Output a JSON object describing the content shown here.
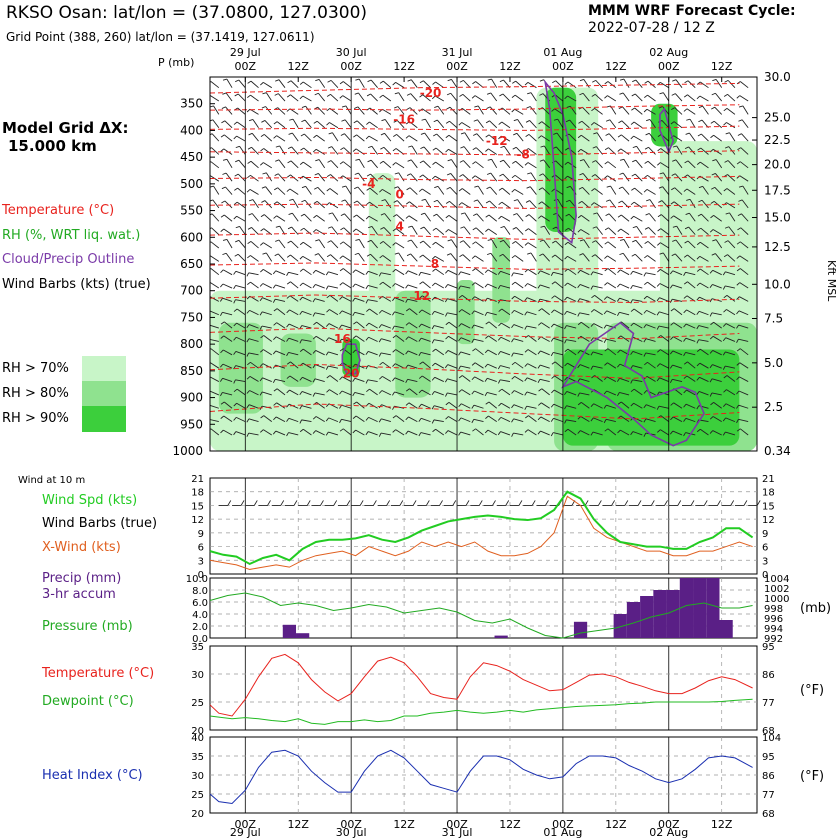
{
  "header": {
    "title": "RKSO Osan:  lat/lon = (37.0800, 127.0300)",
    "subtitle": "Grid Point (388, 260) lat/lon = (37.1419, 127.0611)",
    "forecast_line1": "MMM WRF Forecast Cycle:",
    "forecast_line2": "2022-07-28 / 12  Z",
    "model_grid_line1": "Model Grid ΔX:",
    "model_grid_line2": "15.000 km"
  },
  "colors": {
    "temperature": "#e8231e",
    "rh": "#2fc72f",
    "cloud": "#7a3aa8",
    "wind_speed": "#22cc22",
    "x_wind": "#e06020",
    "precip": "#5a1f86",
    "pressure": "#22aa22",
    "dewpoint": "#22bb22",
    "heat_index": "#1a2fb0",
    "rh70": "#c8f5c8",
    "rh80": "#8fe28f",
    "rh90": "#3ccf3c"
  },
  "legend": {
    "temperature": "Temperature (°C)",
    "rh": "RH (%, WRT liq. wat.)",
    "cloud": "Cloud/Precip Outline",
    "wind_barbs": "Wind Barbs (kts) (true)",
    "rh70": "RH > 70%",
    "rh80": "RH > 80%",
    "rh90": "RH > 90%"
  },
  "time_axis": {
    "dates": [
      {
        "label": "29 Jul",
        "hour": 0
      },
      {
        "label": "30 Jul",
        "hour": 24
      },
      {
        "label": "31 Jul",
        "hour": 48
      },
      {
        "label": "01 Aug",
        "hour": 72
      },
      {
        "label": "02 Aug",
        "hour": 96
      }
    ],
    "ticks": [
      {
        "label": "00Z",
        "hour": 0
      },
      {
        "label": "12Z",
        "hour": 12
      },
      {
        "label": "00Z",
        "hour": 24
      },
      {
        "label": "12Z",
        "hour": 36
      },
      {
        "label": "00Z",
        "hour": 48
      },
      {
        "label": "12Z",
        "hour": 60
      },
      {
        "label": "00Z",
        "hour": 72
      },
      {
        "label": "12Z",
        "hour": 84
      },
      {
        "label": "00Z",
        "hour": 96
      },
      {
        "label": "12Z",
        "hour": 108
      }
    ]
  },
  "chart_data": [
    {
      "type": "heatmap",
      "name": "cross-section",
      "ylabel_left": "P (mb)",
      "ylabel_right": "Kft MSL",
      "pressure_ticks": [
        350,
        400,
        450,
        500,
        550,
        600,
        650,
        700,
        750,
        800,
        850,
        900,
        950,
        1000
      ],
      "height_ticks": [
        {
          "label": "30.0",
          "p": 300
        },
        {
          "label": "25.0",
          "p": 376
        },
        {
          "label": "22.5",
          "p": 418
        },
        {
          "label": "20.0",
          "p": 464
        },
        {
          "label": "17.5",
          "p": 512
        },
        {
          "label": "15.0",
          "p": 563
        },
        {
          "label": "12.5",
          "p": 618
        },
        {
          "label": "10.0",
          "p": 688
        },
        {
          "label": "7.5",
          "p": 752
        },
        {
          "label": "5.0",
          "p": 835
        },
        {
          "label": "2.5",
          "p": 918
        },
        {
          "label": "0.34",
          "p": 1000
        }
      ],
      "temperature_labels": [
        {
          "value": "-20",
          "hour": 42,
          "p": 330
        },
        {
          "value": "-16",
          "hour": 36,
          "p": 380
        },
        {
          "value": "-12",
          "hour": 57,
          "p": 420
        },
        {
          "value": "-8",
          "hour": 63,
          "p": 445
        },
        {
          "value": "-4",
          "hour": 28,
          "p": 500
        },
        {
          "value": "0",
          "hour": 35,
          "p": 520
        },
        {
          "value": "4",
          "hour": 35,
          "p": 580
        },
        {
          "value": "8",
          "hour": 43,
          "p": 650
        },
        {
          "value": "12",
          "hour": 40,
          "p": 710
        },
        {
          "value": "16",
          "hour": 22,
          "p": 790
        },
        {
          "value": "20",
          "hour": 24,
          "p": 855
        }
      ],
      "temperature_isotherms": [
        {
          "p": [
            330,
            325,
            320,
            318,
            315,
            312
          ]
        },
        {
          "p": [
            362,
            360,
            362,
            360,
            355,
            352
          ]
        },
        {
          "p": [
            398,
            396,
            398,
            400,
            396,
            392
          ]
        },
        {
          "p": [
            440,
            442,
            444,
            446,
            442,
            438
          ]
        },
        {
          "p": [
            490,
            488,
            492,
            494,
            490,
            486
          ]
        },
        {
          "p": [
            540,
            538,
            542,
            546,
            542,
            538
          ]
        },
        {
          "p": [
            596,
            592,
            598,
            604,
            600,
            596
          ]
        },
        {
          "p": [
            652,
            648,
            654,
            660,
            658,
            654
          ]
        },
        {
          "p": [
            714,
            708,
            714,
            720,
            722,
            716
          ]
        },
        {
          "p": [
            778,
            770,
            778,
            786,
            790,
            780
          ]
        },
        {
          "p": [
            848,
            838,
            846,
            856,
            864,
            852
          ]
        },
        {
          "p": [
            926,
            912,
            920,
            930,
            940,
            928
          ]
        }
      ],
      "isotherm_hours": [
        -8,
        16,
        40,
        64,
        88,
        112
      ],
      "rh_regions": [
        {
          "level": 70,
          "h0": -8,
          "h1": 116,
          "p0": 700,
          "p1": 1000
        },
        {
          "level": 70,
          "h0": 28,
          "h1": 34,
          "p0": 480,
          "p1": 1000
        },
        {
          "level": 70,
          "h0": 66,
          "h1": 80,
          "p0": 320,
          "p1": 1000
        },
        {
          "level": 70,
          "h0": 94,
          "h1": 116,
          "p0": 420,
          "p1": 1000
        },
        {
          "level": 80,
          "h0": -6,
          "h1": 4,
          "p0": 760,
          "p1": 930
        },
        {
          "level": 80,
          "h0": 8,
          "h1": 16,
          "p0": 780,
          "p1": 880
        },
        {
          "level": 80,
          "h0": 34,
          "h1": 42,
          "p0": 700,
          "p1": 900
        },
        {
          "level": 80,
          "h0": 48,
          "h1": 52,
          "p0": 680,
          "p1": 800
        },
        {
          "level": 80,
          "h0": 56,
          "h1": 60,
          "p0": 600,
          "p1": 760
        },
        {
          "level": 80,
          "h0": 70,
          "h1": 80,
          "p0": 760,
          "p1": 1000
        },
        {
          "level": 80,
          "h0": 82,
          "h1": 116,
          "p0": 760,
          "p1": 1000
        },
        {
          "level": 90,
          "h0": 68,
          "h1": 75,
          "p0": 320,
          "p1": 590
        },
        {
          "level": 90,
          "h0": 22,
          "h1": 26,
          "p0": 790,
          "p1": 860
        },
        {
          "level": 90,
          "h0": 72,
          "h1": 112,
          "p0": 810,
          "p1": 990
        },
        {
          "level": 90,
          "h0": 92,
          "h1": 98,
          "p0": 350,
          "p1": 430
        }
      ],
      "cloud_outlines": [
        {
          "hour": [
            68,
            69,
            70,
            71,
            74,
            75,
            74,
            72,
            70,
            68
          ],
          "p": [
            310,
            360,
            470,
            590,
            610,
            560,
            450,
            370,
            330,
            310
          ]
        },
        {
          "hour": [
            94,
            95,
            96,
            97,
            96,
            94
          ],
          "p": [
            370,
            360,
            390,
            420,
            440,
            400
          ]
        },
        {
          "hour": [
            22,
            23,
            25,
            26,
            25,
            23,
            22
          ],
          "p": [
            820,
            800,
            800,
            830,
            855,
            855,
            835
          ]
        },
        {
          "hour": [
            72,
            78,
            85,
            88,
            86,
            90,
            92,
            99,
            102,
            104,
            100,
            97,
            92,
            88,
            82,
            75,
            72
          ],
          "p": [
            880,
            800,
            760,
            780,
            840,
            860,
            900,
            880,
            890,
            930,
            980,
            990,
            970,
            940,
            900,
            870,
            880
          ]
        }
      ],
      "hour_range": [
        -8,
        116
      ],
      "p_range": [
        300,
        1000
      ]
    },
    {
      "type": "line",
      "name": "wind",
      "title": "Wind at 10 m",
      "labels": [
        "Wind Spd (kts)",
        "Wind Barbs (true)",
        "X-Wind (kts)"
      ],
      "ylim": [
        0,
        21
      ],
      "y_ticks": [
        0,
        3,
        6,
        9,
        12,
        15,
        18,
        21
      ],
      "x": [
        -8,
        -5,
        -2,
        1,
        4,
        7,
        10,
        13,
        16,
        19,
        22,
        25,
        28,
        31,
        34,
        37,
        40,
        43,
        46,
        49,
        52,
        55,
        58,
        61,
        64,
        67,
        70,
        73,
        76,
        79,
        82,
        85,
        88,
        91,
        94,
        97,
        100,
        103,
        106,
        109,
        112,
        115
      ],
      "series": [
        {
          "name": "Wind Spd (kts)",
          "values": [
            5,
            4.2,
            3.8,
            2.2,
            3.5,
            4.2,
            3,
            5.5,
            7,
            7.5,
            7.5,
            7.8,
            8.5,
            7.5,
            7,
            8,
            9.5,
            10.5,
            11.5,
            12,
            12.5,
            12.8,
            12.5,
            12,
            11.8,
            12.2,
            14,
            18,
            16.5,
            12,
            9,
            7,
            6.5,
            6,
            6,
            5.5,
            5.5,
            7,
            8,
            10,
            10,
            8
          ]
        },
        {
          "name": "X-Wind (kts)",
          "values": [
            3,
            2.5,
            2,
            1,
            1.5,
            2,
            1.5,
            3,
            4,
            4.5,
            5,
            4,
            6,
            5,
            4,
            5,
            7,
            6,
            7,
            6,
            7,
            5,
            4,
            4,
            4.5,
            6,
            9,
            17,
            15,
            10,
            8,
            7,
            6,
            5,
            5,
            4,
            4,
            5,
            5,
            6,
            7,
            6
          ]
        }
      ]
    },
    {
      "type": "bar",
      "name": "precip-pressure",
      "labels": [
        "Precip (mm)",
        "3-hr accum",
        "Pressure (mb)"
      ],
      "ylim": [
        0,
        10
      ],
      "y_ticks_left": [
        "0.0",
        "2.0",
        "4.0",
        "6.0",
        "8.0",
        "10.0"
      ],
      "y_ticks_right": [
        "992",
        "994",
        "996",
        "998",
        "1000",
        "1002",
        "1004"
      ],
      "ylabel_right": "(mb)",
      "bars": [
        {
          "hour": 10,
          "value": 2.2
        },
        {
          "hour": 13,
          "value": 0.8
        },
        {
          "hour": 58,
          "value": 0.4
        },
        {
          "hour": 76,
          "value": 2.7
        },
        {
          "hour": 85,
          "value": 4
        },
        {
          "hour": 88,
          "value": 6
        },
        {
          "hour": 91,
          "value": 7
        },
        {
          "hour": 94,
          "value": 8
        },
        {
          "hour": 97,
          "value": 8
        },
        {
          "hour": 100,
          "value": 10
        },
        {
          "hour": 103,
          "value": 10
        },
        {
          "hour": 106,
          "value": 10
        },
        {
          "hour": 109,
          "value": 3
        }
      ],
      "pressure": {
        "x": [
          -8,
          -4,
          0,
          4,
          8,
          12,
          16,
          20,
          24,
          28,
          32,
          36,
          40,
          44,
          48,
          52,
          56,
          60,
          64,
          68,
          72,
          76,
          80,
          84,
          88,
          92,
          96,
          100,
          104,
          108,
          112,
          115
        ],
        "values": [
          999.5,
          1000.5,
          1001,
          1000.2,
          998.5,
          999,
          998.5,
          997.5,
          998,
          998.7,
          998.2,
          997,
          997.5,
          998,
          997.2,
          995.5,
          995,
          995.8,
          994,
          992.5,
          992,
          993,
          993.5,
          994,
          995,
          996.2,
          997,
          998.5,
          999,
          998,
          998,
          998.5
        ],
        "range": [
          992,
          1004
        ]
      }
    },
    {
      "type": "line",
      "name": "temperature-dewpoint",
      "labels": [
        "Temperature (°C)",
        "Dewpoint (°C)"
      ],
      "ylim": [
        20,
        35
      ],
      "y_ticks_left": [
        "20",
        "25",
        "30",
        "35"
      ],
      "y_ticks_right": [
        "68",
        "77",
        "86",
        "95"
      ],
      "ylabel_right": "(°F)",
      "x": [
        -8,
        -6,
        -3,
        0,
        3,
        6,
        9,
        12,
        15,
        18,
        21,
        24,
        27,
        30,
        33,
        36,
        39,
        42,
        45,
        48,
        51,
        54,
        57,
        60,
        63,
        66,
        69,
        72,
        75,
        78,
        81,
        84,
        87,
        90,
        93,
        96,
        99,
        102,
        105,
        108,
        111,
        115
      ],
      "series": [
        {
          "name": "Temperature (°C)",
          "values": [
            24.5,
            23,
            22.5,
            25.5,
            29.5,
            32.8,
            33.5,
            32,
            29,
            26.8,
            25.2,
            26.5,
            29.5,
            32.3,
            33,
            32,
            29.5,
            26.5,
            25.8,
            25.5,
            29.5,
            32,
            31.5,
            30.5,
            29,
            28,
            27,
            27.2,
            28.5,
            29.8,
            30,
            29.5,
            28.5,
            27.8,
            27,
            26.5,
            26.5,
            27.5,
            28.8,
            29.5,
            29,
            27.5
          ]
        },
        {
          "name": "Dewpoint (°C)",
          "values": [
            22.5,
            22.3,
            22,
            22.2,
            22,
            21.7,
            21.5,
            22,
            21.2,
            21,
            21.5,
            21.5,
            21.8,
            21.5,
            21.7,
            22.5,
            22.5,
            23,
            23.2,
            23.5,
            23.2,
            23,
            23.2,
            23.5,
            23.2,
            23.6,
            23.8,
            24,
            24.2,
            24.3,
            24.4,
            24.5,
            24.7,
            24.8,
            25,
            25,
            25,
            25,
            25,
            25.1,
            25.3,
            25.5
          ]
        }
      ]
    },
    {
      "type": "line",
      "name": "heat-index",
      "labels": [
        "Heat Index (°C)"
      ],
      "ylim": [
        20,
        40
      ],
      "y_ticks_left": [
        "20",
        "25",
        "30",
        "35",
        "40"
      ],
      "y_ticks_right": [
        "68",
        "77",
        "86",
        "95",
        "104"
      ],
      "ylabel_right": "(°F)",
      "x": [
        -8,
        -6,
        -3,
        0,
        3,
        6,
        9,
        12,
        15,
        18,
        21,
        24,
        27,
        30,
        33,
        36,
        39,
        42,
        45,
        48,
        51,
        54,
        57,
        60,
        63,
        66,
        69,
        72,
        75,
        78,
        81,
        84,
        87,
        90,
        93,
        96,
        99,
        102,
        105,
        108,
        111,
        115
      ],
      "series": [
        {
          "name": "Heat Index (°C)",
          "values": [
            25,
            23,
            22.5,
            26,
            32,
            36,
            36.5,
            35,
            31,
            28,
            25.5,
            25.5,
            31,
            35,
            36.5,
            34.5,
            31,
            27.5,
            26.5,
            25.5,
            31,
            35,
            35,
            34,
            31.5,
            30,
            29,
            29.5,
            33,
            35,
            35,
            34.5,
            32.5,
            31,
            29,
            28,
            29,
            31.5,
            34.5,
            35,
            34.5,
            32
          ]
        }
      ]
    }
  ]
}
